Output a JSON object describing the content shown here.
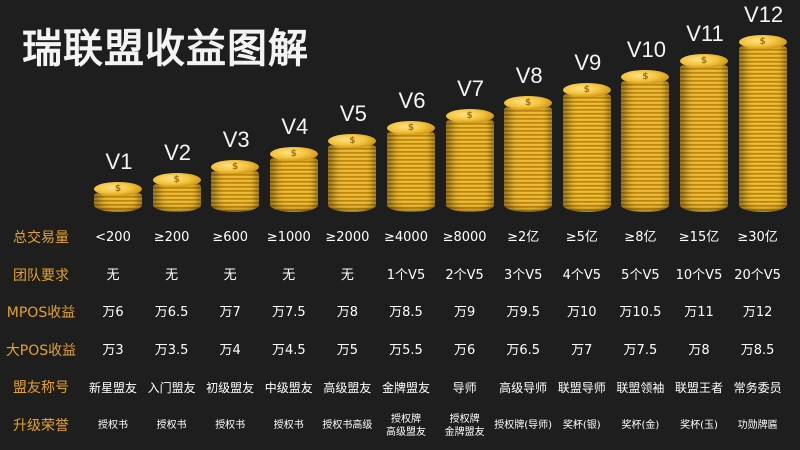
{
  "title": "瑞联盟收益图解",
  "coin_symbol": "$",
  "levels": [
    "V1",
    "V2",
    "V3",
    "V4",
    "V5",
    "V6",
    "V7",
    "V8",
    "V9",
    "V10",
    "V11",
    "V12"
  ],
  "coin_stack_relative_height": [
    0.08,
    0.14,
    0.22,
    0.3,
    0.38,
    0.46,
    0.54,
    0.62,
    0.7,
    0.78,
    0.88,
    1.0
  ],
  "rows": [
    {
      "label": "总交易量",
      "values": [
        "<200",
        "≥200",
        "≥600",
        "≥1000",
        "≥2000",
        "≥4000",
        "≥8000",
        "≥2亿",
        "≥5亿",
        "≥8亿",
        "≥15亿",
        "≥30亿"
      ]
    },
    {
      "label": "团队要求",
      "values": [
        "无",
        "无",
        "无",
        "无",
        "无",
        "1个V5",
        "2个V5",
        "3个V5",
        "4个V5",
        "5个V5",
        "10个V5",
        "20个V5"
      ]
    },
    {
      "label": "MPOS收益",
      "values": [
        "万6",
        "万6.5",
        "万7",
        "万7.5",
        "万8",
        "万8.5",
        "万9",
        "万9.5",
        "万10",
        "万10.5",
        "万11",
        "万12"
      ]
    },
    {
      "label": "大POS收益",
      "values": [
        "万3",
        "万3.5",
        "万4",
        "万4.5",
        "万5",
        "万5.5",
        "万6",
        "万6.5",
        "万7",
        "万7.5",
        "万8",
        "万8.5"
      ]
    },
    {
      "label": "盟友称号",
      "values": [
        "新星盟友",
        "入门盟友",
        "初级盟友",
        "中级盟友",
        "高级盟友",
        "金牌盟友",
        "导师",
        "高级导师",
        "联盟导师",
        "联盟领袖",
        "联盟王者",
        "常务委员"
      ]
    },
    {
      "label": "升级荣誉",
      "values": [
        "授权书",
        "授权书",
        "授权书",
        "授权书",
        "授权书高级",
        "授权牌\n高级盟友",
        "授权牌\n金牌盟友",
        "授权牌(导师)",
        "奖杯(银)",
        "奖杯(金)",
        "奖杯(玉)",
        "功勋牌匾"
      ]
    }
  ],
  "colors": {
    "background": "#1e1e1f",
    "row_label": "#e3a32b",
    "coin": "#f2c23a"
  }
}
